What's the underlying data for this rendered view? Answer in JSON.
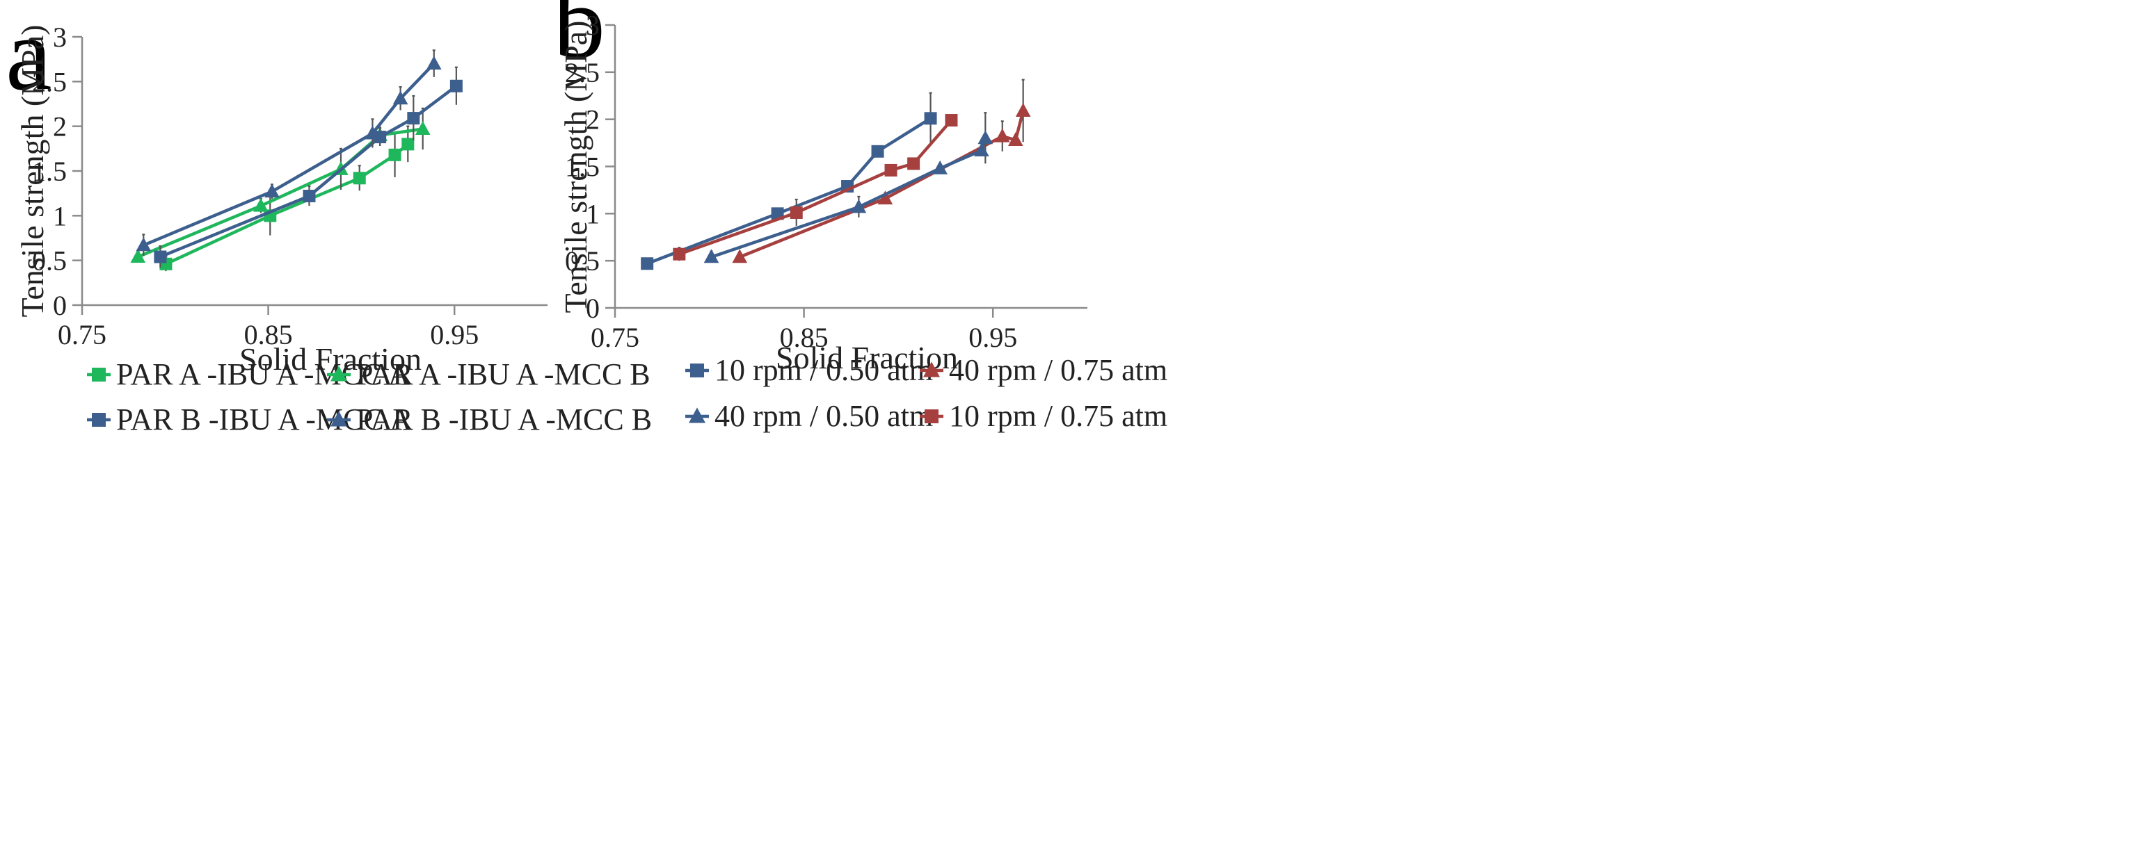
{
  "chart_data": [
    {
      "panel_label": "a",
      "type": "line",
      "xlabel": "Solid Fraction",
      "ylabel": "Tensile strength (MPa)",
      "xlim": [
        0.75,
        1.0
      ],
      "ylim": [
        0,
        3
      ],
      "x_ticks": [
        "0.75",
        "0.85",
        "0.95"
      ],
      "x_tick_values": [
        0.75,
        0.85,
        0.95
      ],
      "y_ticks": [
        "0",
        "0.5",
        "1",
        "1.5",
        "2",
        "2.5",
        "3"
      ],
      "y_tick_values": [
        0,
        0.5,
        1,
        1.5,
        2,
        2.5,
        3
      ],
      "legend_position": "bottom",
      "series": [
        {
          "name": "PAR A -IBU A -MCC A",
          "color": "#1fb75c",
          "marker": "square",
          "points": [
            {
              "x": 0.795,
              "y": 0.46,
              "err": 0.08
            },
            {
              "x": 0.851,
              "y": 1.0,
              "err": 0.22
            },
            {
              "x": 0.899,
              "y": 1.42,
              "err": 0.14
            },
            {
              "x": 0.918,
              "y": 1.68,
              "err": 0.25
            },
            {
              "x": 0.925,
              "y": 1.8,
              "err": 0.2
            }
          ]
        },
        {
          "name": "PAR A -IBU A -MCC B",
          "color": "#1fb75c",
          "marker": "triangle",
          "points": [
            {
              "x": 0.78,
              "y": 0.54,
              "err": 0.06
            },
            {
              "x": 0.846,
              "y": 1.11,
              "err": 0.08
            },
            {
              "x": 0.889,
              "y": 1.52,
              "err": 0.23
            },
            {
              "x": 0.91,
              "y": 1.9,
              "err": 0.12
            },
            {
              "x": 0.933,
              "y": 1.97,
              "err": 0.23
            }
          ]
        },
        {
          "name": "PAR B -IBU A -MCC A",
          "color": "#3d5f8e",
          "marker": "square",
          "points": [
            {
              "x": 0.792,
              "y": 0.54,
              "err": 0.12
            },
            {
              "x": 0.872,
              "y": 1.22,
              "err": 0.11
            },
            {
              "x": 0.91,
              "y": 1.88,
              "err": 0.1
            },
            {
              "x": 0.928,
              "y": 2.09,
              "err": 0.25
            },
            {
              "x": 0.951,
              "y": 2.45,
              "err": 0.21
            }
          ]
        },
        {
          "name": "PAR B -IBU A -MCC B",
          "color": "#3d5f8e",
          "marker": "triangle",
          "points": [
            {
              "x": 0.783,
              "y": 0.67,
              "err": 0.12
            },
            {
              "x": 0.852,
              "y": 1.27,
              "err": 0.08
            },
            {
              "x": 0.906,
              "y": 1.92,
              "err": 0.16
            },
            {
              "x": 0.921,
              "y": 2.31,
              "err": 0.13
            },
            {
              "x": 0.939,
              "y": 2.7,
              "err": 0.15
            }
          ]
        }
      ]
    },
    {
      "panel_label": "b",
      "type": "line",
      "xlabel": "Solid Fraction",
      "ylabel": "Tensile strength (MPa)",
      "xlim": [
        0.75,
        1.0
      ],
      "ylim": [
        0,
        3
      ],
      "x_ticks": [
        "0.75",
        "0.85",
        "0.95"
      ],
      "x_tick_values": [
        0.75,
        0.85,
        0.95
      ],
      "y_ticks": [
        "0",
        "0.5",
        "1",
        "1.5",
        "2",
        "2.5",
        "3"
      ],
      "y_tick_values": [
        0,
        0.5,
        1,
        1.5,
        2,
        2.5,
        3
      ],
      "legend_position": "bottom",
      "series": [
        {
          "name": "10 rpm / 0.50 atm",
          "color": "#3d5f8e",
          "marker": "square",
          "points": [
            {
              "x": 0.767,
              "y": 0.47,
              "err": 0.04
            },
            {
              "x": 0.836,
              "y": 1.0,
              "err": 0.05
            },
            {
              "x": 0.873,
              "y": 1.29,
              "err": 0.04
            },
            {
              "x": 0.889,
              "y": 1.66,
              "err": 0.05
            },
            {
              "x": 0.917,
              "y": 2.01,
              "err": 0.27
            }
          ]
        },
        {
          "name": "40 rpm / 0.75 atm",
          "color": "#a5403f",
          "marker": "triangle",
          "points": [
            {
              "x": 0.816,
              "y": 0.54,
              "err": 0.0
            },
            {
              "x": 0.893,
              "y": 1.16,
              "err": 0.0
            },
            {
              "x": 0.955,
              "y": 1.82,
              "err": 0.16
            },
            {
              "x": 0.962,
              "y": 1.78,
              "err": 0.0
            },
            {
              "x": 0.966,
              "y": 2.09,
              "err": 0.33
            }
          ]
        },
        {
          "name": "40 rpm / 0.50 atm",
          "color": "#3d5f8e",
          "marker": "triangle",
          "points": [
            {
              "x": 0.801,
              "y": 0.54,
              "err": 0.06
            },
            {
              "x": 0.879,
              "y": 1.07,
              "err": 0.11
            },
            {
              "x": 0.922,
              "y": 1.48,
              "err": 0.0
            },
            {
              "x": 0.944,
              "y": 1.67,
              "err": 0.0
            },
            {
              "x": 0.946,
              "y": 1.8,
              "err": 0.27
            }
          ]
        },
        {
          "name": "10 rpm / 0.75 atm",
          "color": "#a5403f",
          "marker": "square",
          "points": [
            {
              "x": 0.784,
              "y": 0.57,
              "err": 0.07
            },
            {
              "x": 0.846,
              "y": 1.01,
              "err": 0.14
            },
            {
              "x": 0.896,
              "y": 1.46,
              "err": 0.0
            },
            {
              "x": 0.908,
              "y": 1.53,
              "err": 0.04
            },
            {
              "x": 0.928,
              "y": 1.99,
              "err": 0.0
            }
          ]
        }
      ]
    }
  ]
}
